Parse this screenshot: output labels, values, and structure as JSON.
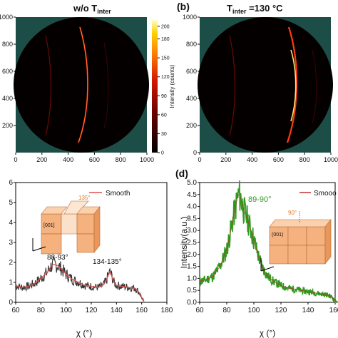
{
  "panel_a": {
    "title_prefix": "w/o T",
    "title_sub": "inter"
  },
  "panel_b": {
    "label": "(b)",
    "title_prefix": "T",
    "title_sub": "inter",
    "title_suffix": " =130 °C"
  },
  "colorbar": {
    "label": "Intensity (counts)",
    "ticks": [
      "0",
      "30",
      "60",
      "90",
      "120",
      "150",
      "180",
      "200"
    ]
  },
  "panel_c": {
    "xlabel": "χ (°)",
    "legend": "Smooth",
    "inset_angle": "135°",
    "inset_facet": "[001]",
    "ann_left": "88-93°",
    "ann_right": "134-135°"
  },
  "panel_d": {
    "label": "(d)",
    "xlabel": "χ (°)",
    "ylabel": "Intensity(a.u.)",
    "legend": "Smooo",
    "peak_label": "89-90°",
    "inset_angle": "90°",
    "inset_facet": "(001)"
  },
  "colors": {
    "raw_c": "#333333",
    "smooth_c": "#e05050",
    "raw_d": "#2e9b1e",
    "peak_label": "#2e9b1e",
    "angle_label": "#e07a20",
    "background": "#1d4d47",
    "cube": "#f5b27f"
  },
  "chart_data": [
    {
      "type": "heatmap",
      "panel": "a",
      "title": "w/o T_inter",
      "x_ticks": [
        "0",
        "200",
        "400",
        "600",
        "800",
        "1000"
      ],
      "y_ticks": [
        "200",
        "400",
        "600",
        "800",
        "1000"
      ],
      "xlim": [
        0,
        1000
      ],
      "ylim": [
        0,
        1000
      ],
      "colorbar_range": [
        0,
        200
      ]
    },
    {
      "type": "heatmap",
      "panel": "b",
      "title": "T_inter =130 °C",
      "x_ticks": [
        "0",
        "200",
        "400",
        "600",
        "800",
        "1000"
      ],
      "y_ticks": [
        "0",
        "200",
        "400",
        "600",
        "800",
        "1000"
      ],
      "xlim": [
        0,
        1000
      ],
      "ylim": [
        0,
        1000
      ]
    },
    {
      "type": "line",
      "panel": "c",
      "xlim": [
        60,
        180
      ],
      "ylim": [
        0,
        6
      ],
      "x_ticks": [
        "60",
        "80",
        "100",
        "120",
        "140",
        "160",
        "180"
      ],
      "y_ticks": [
        "0",
        "1",
        "2",
        "3",
        "4",
        "5",
        "6"
      ],
      "series": [
        {
          "name": "Smooth",
          "role": "smooth",
          "x": [
            60,
            62,
            65,
            70,
            75,
            80,
            85,
            88,
            90,
            93,
            96,
            100,
            105,
            110,
            115,
            120,
            125,
            128,
            130,
            132,
            134,
            135,
            136,
            138,
            140,
            145,
            150,
            155,
            158,
            160,
            161,
            162
          ],
          "y": [
            0.85,
            0.8,
            0.75,
            0.8,
            0.95,
            1.2,
            1.5,
            1.8,
            1.9,
            1.85,
            1.7,
            1.4,
            1.15,
            1.0,
            0.85,
            0.8,
            0.75,
            0.8,
            0.9,
            1.1,
            1.45,
            1.5,
            1.35,
            1.0,
            0.85,
            0.8,
            0.75,
            0.7,
            0.5,
            0.25,
            0.1,
            0.05
          ]
        }
      ]
    },
    {
      "type": "line",
      "panel": "d",
      "xlim": [
        60,
        160
      ],
      "ylim": [
        0,
        5
      ],
      "x_ticks": [
        "60",
        "80",
        "100",
        "120",
        "140",
        "160"
      ],
      "y_ticks": [
        "0.0",
        "0.5",
        "1.0",
        "1.5",
        "2.0",
        "2.5",
        "3.0",
        "3.5",
        "4.0",
        "4.5",
        "5.0"
      ],
      "series": [
        {
          "name": "Smoo",
          "role": "raw",
          "x": [
            60,
            62,
            65,
            70,
            75,
            80,
            83,
            85,
            87,
            88,
            89,
            90,
            91,
            92,
            93,
            95,
            98,
            100,
            103,
            106,
            110,
            115,
            120,
            125,
            130,
            135,
            140,
            145,
            150,
            155,
            158,
            160,
            162
          ],
          "y": [
            0.9,
            0.9,
            0.95,
            1.1,
            1.5,
            2.2,
            3.0,
            3.6,
            4.1,
            4.4,
            4.5,
            4.4,
            4.2,
            4.0,
            3.8,
            3.5,
            3.0,
            2.6,
            2.0,
            1.5,
            1.1,
            0.85,
            0.7,
            0.6,
            0.55,
            0.5,
            0.45,
            0.4,
            0.35,
            0.3,
            0.2,
            0.05,
            0.0
          ]
        }
      ]
    }
  ]
}
